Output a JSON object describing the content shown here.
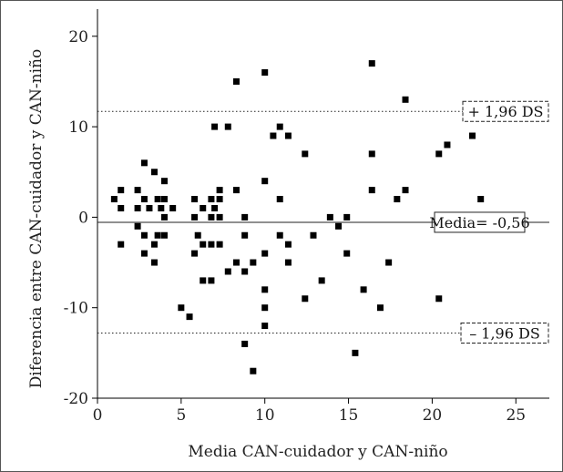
{
  "chart_data": {
    "type": "scatter",
    "xlabel": "Media CAN-cuidador y CAN-niño",
    "ylabel": "Diferencia entre CAN-cuidador y CAN-niño",
    "xlim": [
      0,
      27
    ],
    "ylim": [
      -20,
      23
    ],
    "xticks": [
      "0",
      "5",
      "10",
      "15",
      "20",
      "25"
    ],
    "xtick_values": [
      0,
      5,
      10,
      15,
      20,
      25
    ],
    "yticks": [
      "20",
      "10",
      "0",
      "-10",
      "-20"
    ],
    "ytick_values": [
      20,
      10,
      0,
      -10,
      -20
    ],
    "grid": false,
    "reference_lines": [
      {
        "label": "+ 1,96 DS",
        "y": 11.7,
        "style": "dotted",
        "boxed": true,
        "box_style": "dashed"
      },
      {
        "label": "Media= -0,56",
        "y": -0.56,
        "style": "solid",
        "boxed": true,
        "box_style": "solid"
      },
      {
        "label": "– 1,96 DS",
        "y": -12.8,
        "style": "dotted",
        "boxed": true,
        "box_style": "dashed"
      }
    ],
    "points": [
      {
        "x": 1,
        "y": 2
      },
      {
        "x": 1.4,
        "y": 3
      },
      {
        "x": 1.4,
        "y": 1
      },
      {
        "x": 1.4,
        "y": -3
      },
      {
        "x": 2.4,
        "y": 3
      },
      {
        "x": 2.4,
        "y": 1
      },
      {
        "x": 2.4,
        "y": -1
      },
      {
        "x": 2.8,
        "y": 6
      },
      {
        "x": 2.8,
        "y": 2
      },
      {
        "x": 2.8,
        "y": -2
      },
      {
        "x": 2.8,
        "y": -4
      },
      {
        "x": 3.1,
        "y": 1
      },
      {
        "x": 3.4,
        "y": 5
      },
      {
        "x": 3.4,
        "y": -3
      },
      {
        "x": 3.4,
        "y": -5
      },
      {
        "x": 3.6,
        "y": 2
      },
      {
        "x": 3.6,
        "y": -2
      },
      {
        "x": 3.8,
        "y": 1
      },
      {
        "x": 4,
        "y": 4
      },
      {
        "x": 4,
        "y": 2
      },
      {
        "x": 4,
        "y": 0
      },
      {
        "x": 4,
        "y": -2
      },
      {
        "x": 4.5,
        "y": 1
      },
      {
        "x": 5,
        "y": -10
      },
      {
        "x": 5.5,
        "y": -11
      },
      {
        "x": 5.8,
        "y": 2
      },
      {
        "x": 5.8,
        "y": 0
      },
      {
        "x": 5.8,
        "y": -4
      },
      {
        "x": 6,
        "y": -2
      },
      {
        "x": 6.3,
        "y": 1
      },
      {
        "x": 6.3,
        "y": -3
      },
      {
        "x": 6.3,
        "y": -7
      },
      {
        "x": 6.8,
        "y": 2
      },
      {
        "x": 6.8,
        "y": 0
      },
      {
        "x": 6.8,
        "y": -3
      },
      {
        "x": 6.8,
        "y": -7
      },
      {
        "x": 7,
        "y": 10
      },
      {
        "x": 7,
        "y": 1
      },
      {
        "x": 7.3,
        "y": 3
      },
      {
        "x": 7.3,
        "y": 2
      },
      {
        "x": 7.3,
        "y": 0
      },
      {
        "x": 7.3,
        "y": -3
      },
      {
        "x": 7.8,
        "y": 10
      },
      {
        "x": 7.8,
        "y": -6
      },
      {
        "x": 8.3,
        "y": 15
      },
      {
        "x": 8.3,
        "y": 3
      },
      {
        "x": 8.3,
        "y": -5
      },
      {
        "x": 8.8,
        "y": 0
      },
      {
        "x": 8.8,
        "y": -2
      },
      {
        "x": 8.8,
        "y": -6
      },
      {
        "x": 8.8,
        "y": -14
      },
      {
        "x": 9.3,
        "y": -5
      },
      {
        "x": 9.3,
        "y": -17
      },
      {
        "x": 10,
        "y": 16
      },
      {
        "x": 10,
        "y": 4
      },
      {
        "x": 10,
        "y": -4
      },
      {
        "x": 10,
        "y": -8
      },
      {
        "x": 10,
        "y": -10
      },
      {
        "x": 10,
        "y": -12
      },
      {
        "x": 10.5,
        "y": 9
      },
      {
        "x": 10.9,
        "y": 10
      },
      {
        "x": 10.9,
        "y": 2
      },
      {
        "x": 10.9,
        "y": -2
      },
      {
        "x": 11.4,
        "y": 9
      },
      {
        "x": 11.4,
        "y": -3
      },
      {
        "x": 11.4,
        "y": -5
      },
      {
        "x": 12.4,
        "y": 7
      },
      {
        "x": 12.4,
        "y": -9
      },
      {
        "x": 12.9,
        "y": -2
      },
      {
        "x": 13.4,
        "y": -7
      },
      {
        "x": 13.9,
        "y": 0
      },
      {
        "x": 14.4,
        "y": -1
      },
      {
        "x": 14.9,
        "y": 0
      },
      {
        "x": 14.9,
        "y": -4
      },
      {
        "x": 15.4,
        "y": -15
      },
      {
        "x": 15.9,
        "y": -8
      },
      {
        "x": 16.4,
        "y": 17
      },
      {
        "x": 16.4,
        "y": 7
      },
      {
        "x": 16.4,
        "y": 3
      },
      {
        "x": 16.9,
        "y": -10
      },
      {
        "x": 17.4,
        "y": -5
      },
      {
        "x": 17.9,
        "y": 2
      },
      {
        "x": 18.4,
        "y": 13
      },
      {
        "x": 18.4,
        "y": 3
      },
      {
        "x": 20.4,
        "y": 7
      },
      {
        "x": 20.4,
        "y": -9
      },
      {
        "x": 20.9,
        "y": 8
      },
      {
        "x": 22.4,
        "y": 9
      },
      {
        "x": 22.9,
        "y": 2
      }
    ]
  }
}
